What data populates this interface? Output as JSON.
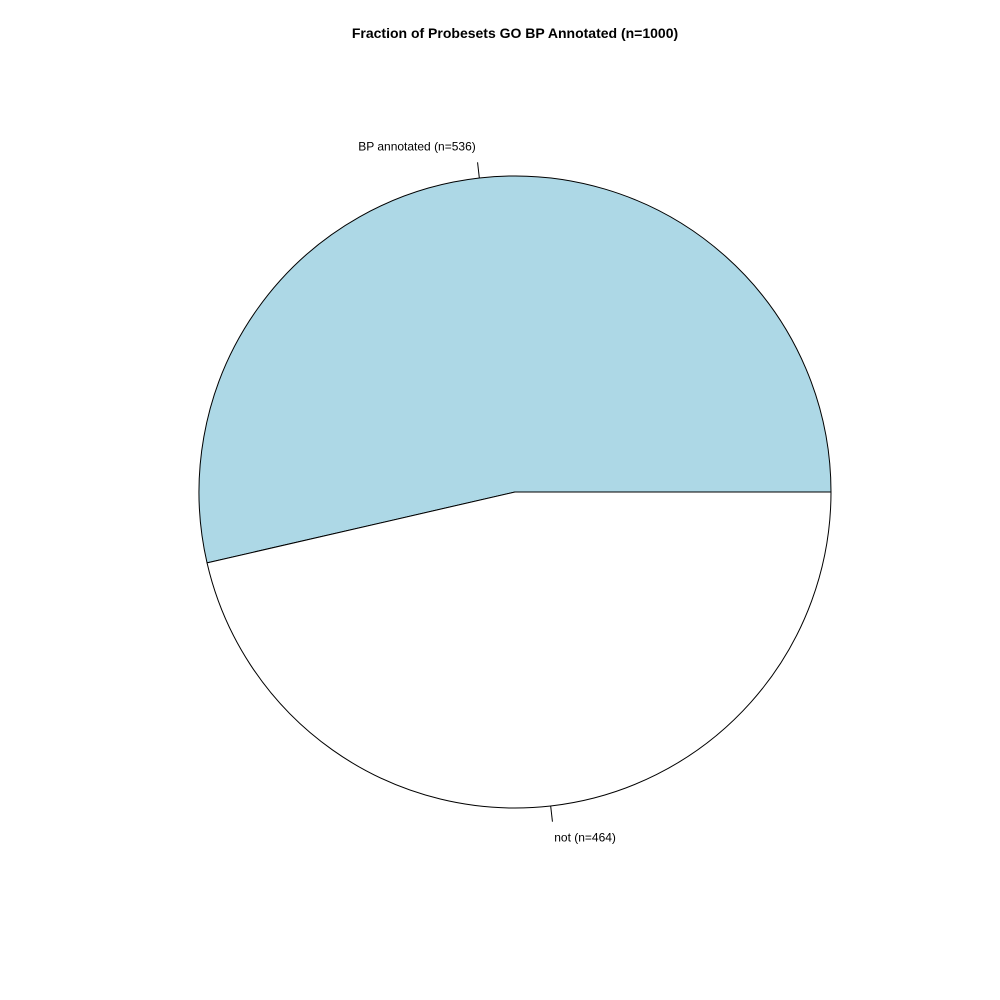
{
  "chart_data": {
    "type": "pie",
    "title": "Fraction of Probesets GO BP Annotated (n=1000)",
    "direction": "counterclockwise",
    "start_angle_deg": 0,
    "slices": [
      {
        "label": "BP annotated (n=536)",
        "value": 536,
        "color": "#add8e6"
      },
      {
        "label": "not (n=464)",
        "value": 464,
        "color": "#ffffff"
      }
    ],
    "outline_color": "#000000"
  }
}
